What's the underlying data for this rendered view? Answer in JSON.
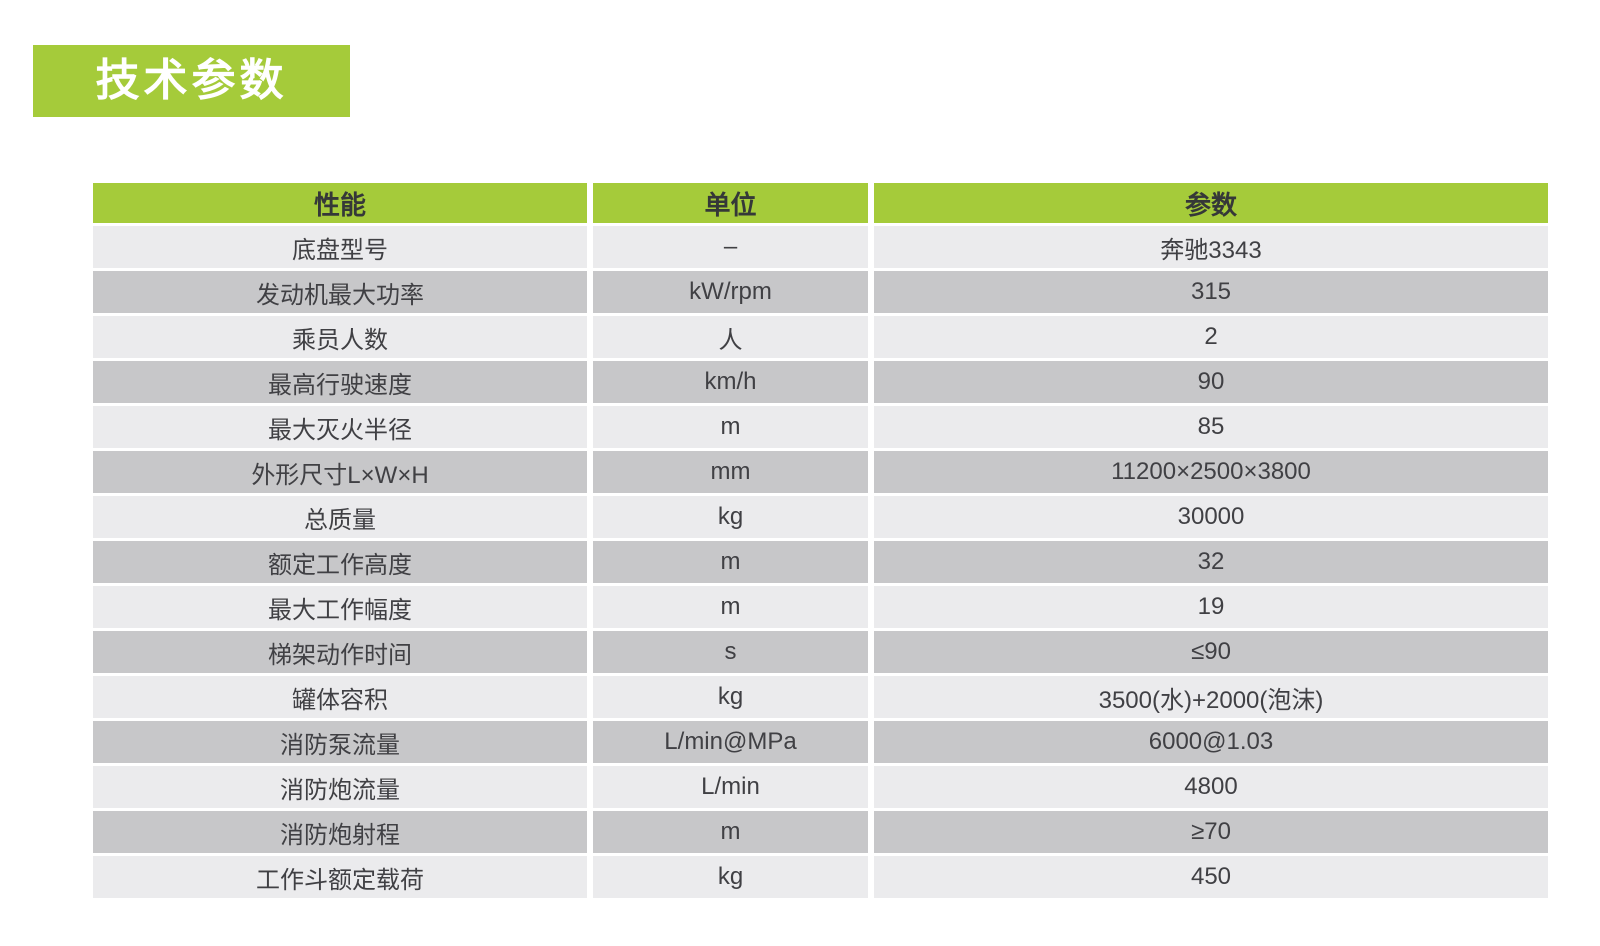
{
  "page": {
    "background": "#ffffff"
  },
  "title": {
    "label": "技术参数"
  },
  "colors": {
    "accent_green": "#a5cb3a",
    "row_light": "#ebebed",
    "row_dark": "#c7c7c9",
    "header_text": "#353838",
    "body_text": "#404044",
    "title_text": "#ffffff"
  },
  "table": {
    "columns": [
      "性能",
      "单位",
      "参数"
    ],
    "rows": [
      {
        "name": "底盘型号",
        "unit": "–",
        "value": "奔驰3343"
      },
      {
        "name": "发动机最大功率",
        "unit": "kW/rpm",
        "value": "315"
      },
      {
        "name": "乘员人数",
        "unit": "人",
        "value": "2"
      },
      {
        "name": "最高行驶速度",
        "unit": "km/h",
        "value": "90"
      },
      {
        "name": "最大灭火半径",
        "unit": "m",
        "value": "85"
      },
      {
        "name": "外形尺寸L×W×H",
        "unit": "mm",
        "value": "11200×2500×3800"
      },
      {
        "name": "总质量",
        "unit": "kg",
        "value": "30000"
      },
      {
        "name": "额定工作高度",
        "unit": "m",
        "value": "32"
      },
      {
        "name": "最大工作幅度",
        "unit": "m",
        "value": "19"
      },
      {
        "name": "梯架动作时间",
        "unit": "s",
        "value": "≤90"
      },
      {
        "name": "罐体容积",
        "unit": "kg",
        "value": "3500(水)+2000(泡沫)"
      },
      {
        "name": "消防泵流量",
        "unit": "L/min@MPa",
        "value": "6000@1.03"
      },
      {
        "name": "消防炮流量",
        "unit": "L/min",
        "value": "4800"
      },
      {
        "name": "消防炮射程",
        "unit": "m",
        "value": "≥70"
      },
      {
        "name": "工作斗额定载荷",
        "unit": "kg",
        "value": "450"
      }
    ]
  }
}
